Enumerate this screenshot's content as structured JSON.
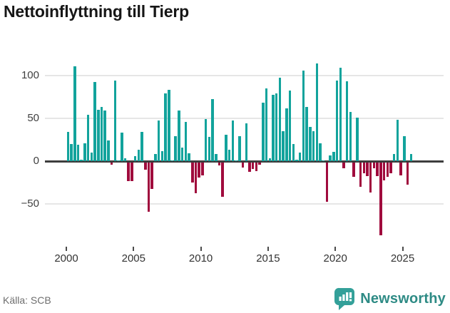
{
  "title": "Nettoinflyttning till Tierp",
  "source": "Källa: SCB",
  "logo": {
    "text": "Newsworthy",
    "icon": "newsworthy-bar-chart-icon"
  },
  "colors": {
    "positive_bar": "#12a39c",
    "negative_bar": "#a00b3d",
    "gridline": "#e6e6e6",
    "zero_line": "#3d3d3d",
    "title_text": "#161616",
    "axis_text": "#3f3f3f",
    "source_text": "#6e6e6e",
    "logo_icon": "#33a099",
    "logo_text": "#2e8b85"
  },
  "chart_data": {
    "type": "bar",
    "title": "Nettoinflyttning till Tierp",
    "frequency": "quarterly",
    "start_period": "2000-Q1",
    "end_period": "2025-Q3",
    "values": [
      34,
      20,
      110,
      19,
      2,
      21,
      54,
      10,
      92,
      60,
      63,
      59,
      24,
      -3,
      94,
      1,
      33,
      3,
      -22,
      -22,
      6,
      13,
      34,
      -9,
      -58,
      -31,
      8,
      47,
      12,
      79,
      83,
      1,
      29,
      59,
      16,
      46,
      9,
      -24,
      -36,
      -18,
      -15,
      49,
      28,
      72,
      8,
      -4,
      -40,
      31,
      13,
      47,
      1,
      29,
      -6,
      44,
      -11,
      -8,
      -10,
      -3,
      68,
      85,
      3,
      77,
      79,
      97,
      35,
      61,
      82,
      20,
      2,
      10,
      105,
      63,
      40,
      35,
      114,
      21,
      1,
      -46,
      7,
      11,
      94,
      109,
      -7,
      93,
      57,
      -17,
      51,
      -29,
      -13,
      -16,
      -35,
      -7,
      -16,
      -85,
      -21,
      -17,
      -13,
      8,
      48,
      -15,
      29,
      -26,
      8
    ],
    "y_axis": {
      "ticks": [
        100,
        50,
        0,
        -50
      ],
      "tick_labels": [
        "100",
        "50",
        "0",
        "−50"
      ],
      "range": [
        -90,
        120
      ]
    },
    "x_axis": {
      "tick_labels": [
        "2000",
        "2005",
        "2010",
        "2015",
        "2020",
        "2025"
      ]
    },
    "grid": "horizontal",
    "legend": "none",
    "xlabel": "",
    "ylabel": ""
  }
}
